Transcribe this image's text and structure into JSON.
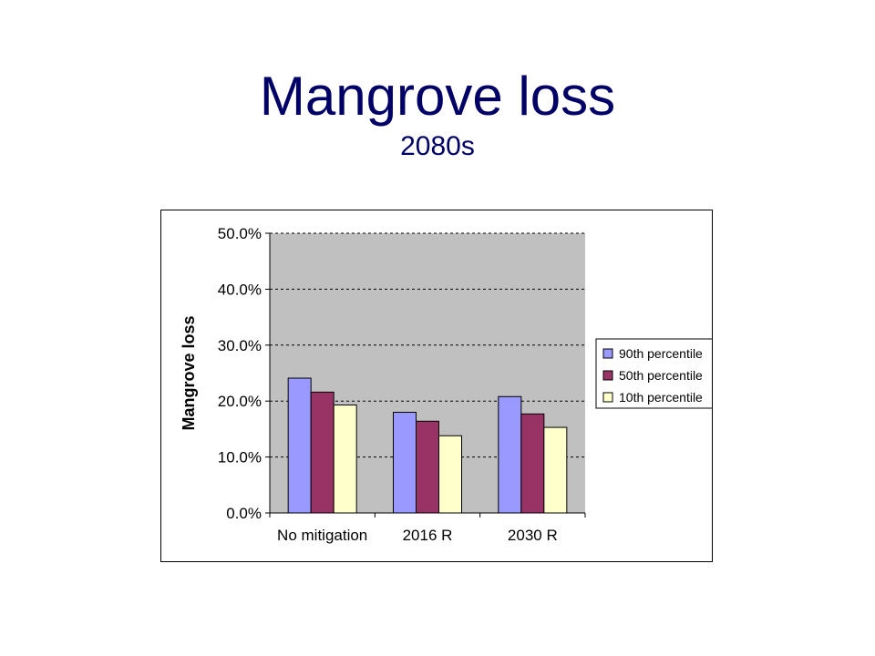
{
  "slide": {
    "title": "Mangrove loss",
    "subtitle": "2080s"
  },
  "colors": {
    "title": "#000066",
    "plot_area": "#c0c0c0",
    "series": [
      "#9999ff",
      "#993366",
      "#ffffcc"
    ]
  },
  "chart_data": {
    "type": "bar",
    "title": "",
    "xlabel": "",
    "ylabel": "Mangrove loss",
    "categories": [
      "No mitigation",
      "2016 R",
      "2030 R"
    ],
    "series": [
      {
        "name": "90th percentile",
        "values": [
          0.241,
          0.18,
          0.208
        ]
      },
      {
        "name": "50th percentile",
        "values": [
          0.216,
          0.164,
          0.177
        ]
      },
      {
        "name": "10th percentile",
        "values": [
          0.193,
          0.138,
          0.153
        ]
      }
    ],
    "ylim": [
      0,
      0.5
    ],
    "yticks": [
      0,
      0.1,
      0.2,
      0.3,
      0.4,
      0.5
    ],
    "ytick_labels": [
      "0.0%",
      "10.0%",
      "20.0%",
      "30.0%",
      "40.0%",
      "50.0%"
    ],
    "grid": "horizontal dashed",
    "legend_position": "right"
  }
}
